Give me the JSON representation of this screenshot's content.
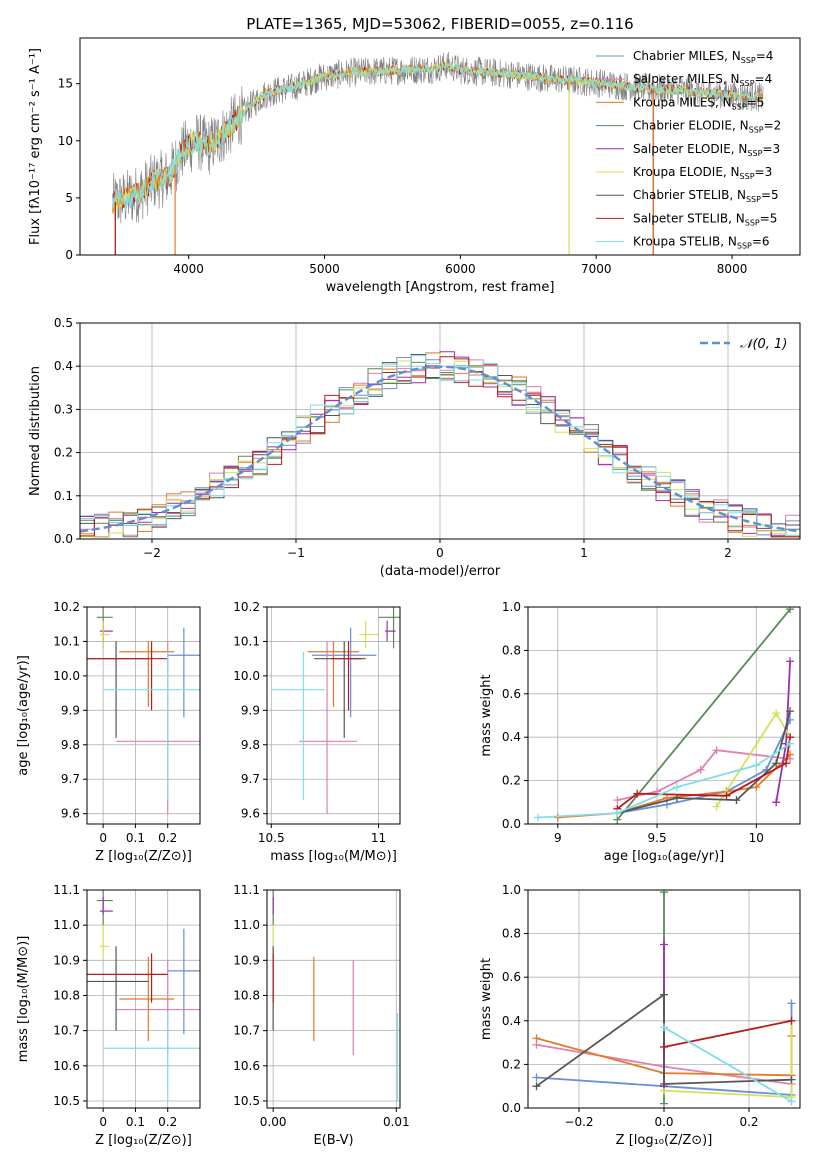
{
  "figure_title": "PLATE=1365, MJD=53062, FIBERID=0055, z=0.116",
  "colors": {
    "Chabrier MILES": "#6a8fd9",
    "Salpeter MILES": "#e07fb5",
    "Kroupa MILES": "#e57a2a",
    "Chabrier ELODIE": "#5a8a5a",
    "Salpeter ELODIE": "#9b2fae",
    "Kroupa ELODIE": "#d4e157",
    "Chabrier STELIB": "#555555",
    "Salpeter STELIB": "#b71c1c",
    "Kroupa STELIB": "#80deea"
  },
  "chart_data": [
    {
      "type": "line",
      "xlabel": "wavelength [Angstrom, rest frame]",
      "ylabel": "Flux [fλ10⁻¹⁷ erg cm⁻² s⁻¹ A⁻¹]",
      "xlim": [
        3200,
        8500
      ],
      "ylim": [
        0,
        19
      ],
      "xticks": [
        4000,
        5000,
        6000,
        7000,
        8000
      ],
      "yticks": [
        0,
        5,
        10,
        15
      ],
      "grid": false,
      "legend_position": "right",
      "legend": [
        {
          "name": "Chabrier MILES",
          "label": "Chabrier MILES, N",
          "sub": "SSP",
          "tail": "=4"
        },
        {
          "name": "Salpeter MILES",
          "label": "Salpeter MILES, N",
          "sub": "SSP",
          "tail": "=4"
        },
        {
          "name": "Kroupa MILES",
          "label": "Kroupa MILES, N",
          "sub": "SSP",
          "tail": "=5"
        },
        {
          "name": "Chabrier ELODIE",
          "label": "Chabrier ELODIE, N",
          "sub": "SSP",
          "tail": "=2"
        },
        {
          "name": "Salpeter ELODIE",
          "label": "Salpeter ELODIE, N",
          "sub": "SSP",
          "tail": "=3"
        },
        {
          "name": "Kroupa ELODIE",
          "label": "Kroupa ELODIE, N",
          "sub": "SSP",
          "tail": "=3"
        },
        {
          "name": "Chabrier STELIB",
          "label": "Chabrier STELIB, N",
          "sub": "SSP",
          "tail": "=5"
        },
        {
          "name": "Salpeter STELIB",
          "label": "Salpeter STELIB, N",
          "sub": "SSP",
          "tail": "=5"
        },
        {
          "name": "Kroupa STELIB",
          "label": "Kroupa STELIB, N",
          "sub": "SSP",
          "tail": "=6"
        }
      ],
      "continuum": {
        "x": [
          3450,
          3550,
          3650,
          3750,
          3850,
          3950,
          4050,
          4150,
          4250,
          4350,
          4450,
          4550,
          4650,
          4750,
          4850,
          4950,
          5050,
          5150,
          5250,
          5400,
          5600,
          5800,
          5900,
          6000,
          6200,
          6400,
          6600,
          6800,
          7000,
          7200,
          7400,
          7600,
          7800,
          8000,
          8230
        ],
        "y": [
          4.6,
          5.0,
          5.5,
          6.5,
          6.8,
          9.0,
          10.0,
          9.5,
          10.5,
          11.8,
          13.0,
          14.0,
          14.4,
          14.6,
          15.0,
          15.5,
          15.7,
          15.9,
          16.0,
          16.1,
          16.2,
          16.3,
          16.6,
          16.2,
          16.0,
          15.8,
          15.5,
          15.3,
          15.1,
          14.8,
          14.6,
          14.4,
          14.2,
          14.0,
          13.8
        ]
      },
      "dropouts": [
        {
          "series": "Kroupa MILES",
          "x": 3460
        },
        {
          "series": "Salpeter STELIB",
          "x": 3460
        },
        {
          "series": "Kroupa MILES",
          "x": 3900
        },
        {
          "series": "Kroupa ELODIE",
          "x": 6800
        },
        {
          "series": "Salpeter STELIB",
          "x": 7420
        },
        {
          "series": "Kroupa MILES",
          "x": 7420
        }
      ]
    },
    {
      "type": "line",
      "xlabel": "(data-model)/error",
      "ylabel": "Normed distribution",
      "xlim": [
        -2.5,
        2.5
      ],
      "ylim": [
        0,
        0.5
      ],
      "xticks": [
        -2,
        -1,
        0,
        1,
        2
      ],
      "xtick_labels": [
        "−2",
        "−1",
        "0",
        "1",
        "2"
      ],
      "yticks": [
        0.0,
        0.1,
        0.2,
        0.3,
        0.4,
        0.5
      ],
      "ytick_labels": [
        "0.0",
        "0.1",
        "0.2",
        "0.3",
        "0.4",
        "0.5"
      ],
      "grid": true,
      "legend_position": "top-right",
      "legend_label": "𝒩(0, 1)",
      "reference": "normal(0,1)",
      "bin_width": 0.1
    },
    {
      "type": "scatter",
      "xlabel": "Z [log₁₀(Z/Z⊙)]",
      "ylabel": "age  [log₁₀(age/yr)]",
      "xlim": [
        -0.05,
        0.3
      ],
      "ylim": [
        9.57,
        10.2
      ],
      "xticks": [
        0.0,
        0.1,
        0.2
      ],
      "yticks": [
        9.6,
        9.7,
        9.8,
        9.9,
        10.0,
        10.1,
        10.2
      ],
      "grid": true
    },
    {
      "type": "scatter",
      "xlabel": "mass [log₁₀(M/M⊙)]",
      "ylabel": "",
      "xlim": [
        10.48,
        11.1
      ],
      "ylim": [
        9.57,
        10.2
      ],
      "xticks": [
        10.5,
        11.0
      ],
      "yticks": [
        9.6,
        9.7,
        9.8,
        9.9,
        10.0,
        10.1,
        10.2
      ],
      "grid": true
    },
    {
      "type": "line",
      "xlabel": "age  [log₁₀(age/yr)]",
      "ylabel": "mass weight",
      "xlim": [
        8.85,
        10.22
      ],
      "ylim": [
        0,
        1.0
      ],
      "xticks": [
        9.0,
        9.5,
        10.0
      ],
      "yticks": [
        0.0,
        0.2,
        0.4,
        0.6,
        0.8,
        1.0
      ],
      "grid": true,
      "series": [
        {
          "name": "Chabrier MILES",
          "x": [
            9.3,
            9.55,
            9.85,
            10.05,
            10.17
          ],
          "y": [
            0.05,
            0.09,
            0.15,
            0.25,
            0.48
          ]
        },
        {
          "name": "Salpeter MILES",
          "x": [
            9.3,
            9.5,
            9.72,
            9.8,
            10.17
          ],
          "y": [
            0.11,
            0.15,
            0.25,
            0.34,
            0.3
          ]
        },
        {
          "name": "Kroupa MILES",
          "x": [
            9.0,
            9.3,
            9.55,
            9.85,
            10.0,
            10.17
          ],
          "y": [
            0.03,
            0.05,
            0.12,
            0.15,
            0.17,
            0.32
          ]
        },
        {
          "name": "Chabrier ELODIE",
          "x": [
            9.3,
            10.17
          ],
          "y": [
            0.02,
            0.99
          ]
        },
        {
          "name": "Salpeter ELODIE",
          "x": [
            10.1,
            10.15,
            10.17
          ],
          "y": [
            0.1,
            0.37,
            0.75
          ]
        },
        {
          "name": "Kroupa ELODIE",
          "x": [
            9.8,
            10.1,
            10.17
          ],
          "y": [
            0.08,
            0.51,
            0.4
          ]
        },
        {
          "name": "Chabrier STELIB",
          "x": [
            9.3,
            9.6,
            9.9,
            10.1,
            10.17
          ],
          "y": [
            0.05,
            0.12,
            0.11,
            0.28,
            0.52
          ]
        },
        {
          "name": "Salpeter STELIB",
          "x": [
            9.3,
            9.4,
            9.85,
            10.15,
            10.17
          ],
          "y": [
            0.07,
            0.14,
            0.13,
            0.28,
            0.4
          ]
        },
        {
          "name": "Kroupa STELIB",
          "x": [
            8.9,
            9.3,
            9.6,
            10.0,
            10.17
          ],
          "y": [
            0.03,
            0.05,
            0.17,
            0.27,
            0.37
          ]
        }
      ]
    },
    {
      "type": "scatter",
      "xlabel": "Z [log₁₀(Z/Z⊙)]",
      "ylabel": "mass [log₁₀(M/M⊙)]",
      "xlim": [
        -0.05,
        0.3
      ],
      "ylim": [
        10.48,
        11.1
      ],
      "xticks": [
        0.0,
        0.1,
        0.2
      ],
      "yticks": [
        10.5,
        10.6,
        10.7,
        10.8,
        10.9,
        11.0,
        11.1
      ],
      "grid": true
    },
    {
      "type": "scatter",
      "xlabel": "E(B-V)",
      "ylabel": "",
      "xlim": [
        -0.0005,
        0.0103
      ],
      "ylim": [
        10.48,
        11.1
      ],
      "xticks": [
        0.0,
        0.01
      ],
      "xtick_labels": [
        "0.00",
        "0.01"
      ],
      "yticks": [
        10.5,
        10.6,
        10.7,
        10.8,
        10.9,
        11.0,
        11.1
      ],
      "grid": true
    },
    {
      "type": "line",
      "xlabel": "Z [log₁₀(Z/Z⊙)]",
      "ylabel": "mass weight",
      "xlim": [
        -0.32,
        0.32
      ],
      "ylim": [
        0,
        1.0
      ],
      "xticks": [
        -0.2,
        0.0,
        0.2
      ],
      "xtick_labels": [
        "−0.2",
        "0.0",
        "0.2"
      ],
      "yticks": [
        0.0,
        0.2,
        0.4,
        0.6,
        0.8,
        1.0
      ],
      "grid": true,
      "series": [
        {
          "name": "Chabrier MILES",
          "x": [
            -0.3,
            0.0,
            0.3,
            0.3
          ],
          "y": [
            0.14,
            0.1,
            0.06,
            0.48
          ]
        },
        {
          "name": "Salpeter MILES",
          "x": [
            -0.3,
            0.0,
            0.3
          ],
          "y": [
            0.29,
            0.19,
            0.11
          ]
        },
        {
          "name": "Kroupa MILES",
          "x": [
            -0.3,
            0.0,
            0.3,
            0.3
          ],
          "y": [
            0.32,
            0.16,
            0.15,
            0.33
          ]
        },
        {
          "name": "Chabrier ELODIE",
          "x": [
            0.0,
            0.0
          ],
          "y": [
            0.02,
            0.99
          ]
        },
        {
          "name": "Salpeter ELODIE",
          "x": [
            0.0,
            0.0
          ],
          "y": [
            0.1,
            0.75
          ]
        },
        {
          "name": "Kroupa ELODIE",
          "x": [
            0.0,
            0.3,
            0.3
          ],
          "y": [
            0.08,
            0.05,
            0.4
          ]
        },
        {
          "name": "Chabrier STELIB",
          "x": [
            -0.3,
            0.0,
            0.0,
            0.3
          ],
          "y": [
            0.1,
            0.52,
            0.11,
            0.13
          ]
        },
        {
          "name": "Salpeter STELIB",
          "x": [
            0.0,
            0.3
          ],
          "y": [
            0.28,
            0.4
          ]
        },
        {
          "name": "Kroupa STELIB",
          "x": [
            0.0,
            0.3
          ],
          "y": [
            0.37,
            0.03
          ]
        }
      ]
    }
  ],
  "best_fits": [
    {
      "name": "Chabrier MILES",
      "Z": [
        0.2,
        0.3
      ],
      "age": [
        9.88,
        10.14
      ],
      "age_c": 10.06,
      "Z_c": 0.25,
      "mass": [
        10.69,
        10.99
      ],
      "mass_c": 10.87,
      "ebv": null
    },
    {
      "name": "Salpeter MILES",
      "Z": [
        0.04,
        0.3
      ],
      "age": [
        9.6,
        10.1
      ],
      "age_c": 9.81,
      "Z_c": 0.2,
      "mass": [
        10.63,
        10.9
      ],
      "mass_c": 10.76,
      "ebv": 0.0065
    },
    {
      "name": "Kroupa MILES",
      "Z": [
        0.05,
        0.22
      ],
      "age": [
        9.91,
        10.1
      ],
      "age_c": 10.07,
      "Z_c": 0.14,
      "mass": [
        10.67,
        10.91
      ],
      "mass_c": 10.79,
      "ebv": 0.0033
    },
    {
      "name": "Chabrier ELODIE",
      "Z": [
        -0.02,
        0.03
      ],
      "age": [
        10.08,
        10.2
      ],
      "age_c": 10.17,
      "Z_c": 0.0,
      "mass": [
        11.0,
        11.14
      ],
      "mass_c": 11.07,
      "ebv": 0.0
    },
    {
      "name": "Salpeter ELODIE",
      "Z": [
        -0.01,
        0.03
      ],
      "age": [
        10.1,
        10.16
      ],
      "age_c": 10.13,
      "Z_c": 0.0,
      "mass": [
        11.03,
        11.08
      ],
      "mass_c": 11.04,
      "ebv": 0.0
    },
    {
      "name": "Kroupa ELODIE",
      "Z": [
        -0.01,
        0.02
      ],
      "age": [
        10.08,
        10.16
      ],
      "age_c": 10.12,
      "Z_c": 0.0,
      "mass": [
        10.91,
        11.0
      ],
      "mass_c": 10.94,
      "ebv": 0.0
    },
    {
      "name": "Chabrier STELIB",
      "Z": [
        -0.05,
        0.14
      ],
      "age": [
        9.82,
        10.1
      ],
      "age_c": 10.05,
      "Z_c": 0.04,
      "mass": [
        10.7,
        10.94
      ],
      "mass_c": 10.84,
      "ebv": 0.0
    },
    {
      "name": "Salpeter STELIB",
      "Z": [
        -0.05,
        0.2
      ],
      "age": [
        9.9,
        10.1
      ],
      "age_c": 10.05,
      "Z_c": 0.15,
      "mass": [
        10.78,
        10.92
      ],
      "mass_c": 10.86,
      "ebv": 0.0
    },
    {
      "name": "Kroupa STELIB",
      "Z": [
        0.0,
        0.3
      ],
      "age": [
        9.64,
        10.07
      ],
      "age_c": 9.96,
      "Z_c": 0.2,
      "mass": [
        10.5,
        10.75
      ],
      "mass_c": 10.65,
      "ebv": 0.0101
    }
  ]
}
